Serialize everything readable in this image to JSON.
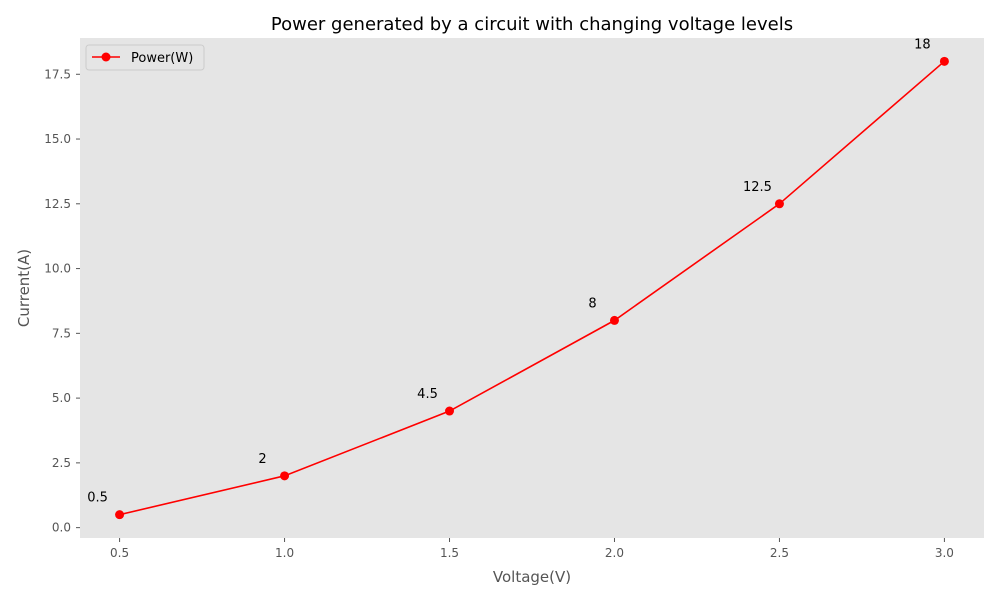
{
  "chart_data": {
    "type": "line",
    "title": "Power generated by a circuit with changing voltage levels",
    "xlabel": "Voltage(V)",
    "ylabel": "Current(A)",
    "x": [
      0.5,
      1.0,
      1.5,
      2.0,
      2.5,
      3.0
    ],
    "series": [
      {
        "name": "Power(W)",
        "values": [
          0.5,
          2,
          4.5,
          8,
          12.5,
          18
        ],
        "data_labels": [
          "0.5",
          "2",
          "4.5",
          "8",
          "12.5",
          "18"
        ],
        "color": "#ff0000",
        "marker": "circle"
      }
    ],
    "xlim": [
      0.38,
      3.12
    ],
    "ylim": [
      -0.4,
      18.9
    ],
    "xticks": [
      0.5,
      1.0,
      1.5,
      2.0,
      2.5,
      3.0
    ],
    "xtick_labels": [
      "0.5",
      "1.0",
      "1.5",
      "2.0",
      "2.5",
      "3.0"
    ],
    "yticks": [
      0.0,
      2.5,
      5.0,
      7.5,
      10.0,
      12.5,
      15.0,
      17.5
    ],
    "ytick_labels": [
      "0.0",
      "2.5",
      "5.0",
      "7.5",
      "10.0",
      "12.5",
      "15.0",
      "17.5"
    ],
    "grid": false,
    "legend_position": "upper-left",
    "background_color": "#e5e5e5"
  }
}
